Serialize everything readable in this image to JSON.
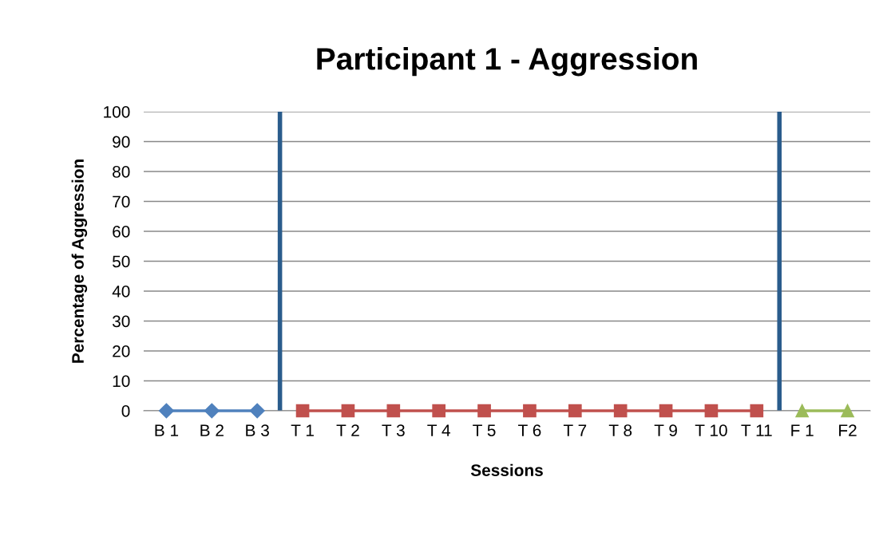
{
  "chart_data": {
    "type": "line",
    "title": "Participant 1 - Aggression",
    "xlabel": "Sessions",
    "ylabel": "Percentage of Aggression",
    "categories": [
      "B 1",
      "B 2",
      "B 3",
      "T 1",
      "T 2",
      "T 3",
      "T 4",
      "T 5",
      "T 6",
      "T 7",
      "T 8",
      "T 9",
      "T 10",
      "T 11",
      "F 1",
      "F2"
    ],
    "series": [
      {
        "color": "#4f81bd",
        "marker": "diamond",
        "values": [
          0,
          0,
          0,
          null,
          null,
          null,
          null,
          null,
          null,
          null,
          null,
          null,
          null,
          null,
          null,
          null
        ]
      },
      {
        "color": "#c0504d",
        "marker": "square",
        "values": [
          null,
          null,
          null,
          0,
          0,
          0,
          0,
          0,
          0,
          0,
          0,
          0,
          0,
          0,
          null,
          null
        ]
      },
      {
        "color": "#9bbb59",
        "marker": "triangle",
        "values": [
          null,
          null,
          null,
          null,
          null,
          null,
          null,
          null,
          null,
          null,
          null,
          null,
          null,
          null,
          0,
          0
        ]
      }
    ],
    "ylim": [
      0,
      100
    ],
    "yticks": [
      0,
      10,
      20,
      30,
      40,
      50,
      60,
      70,
      80,
      90,
      100
    ],
    "grid": "y",
    "legend": false
  }
}
